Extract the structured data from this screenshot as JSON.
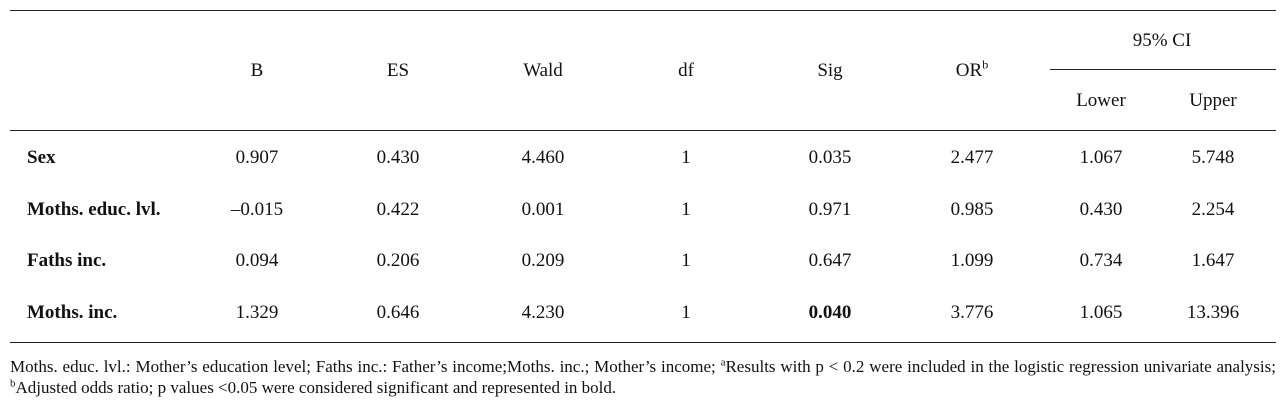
{
  "table": {
    "header": {
      "columns": [
        "B",
        "ES",
        "Wald",
        "df",
        "Sig"
      ],
      "or_label": "OR",
      "or_sup": "b",
      "ci_group": "95% CI",
      "ci_lower": "Lower",
      "ci_upper": "Upper"
    },
    "rows": [
      {
        "label": "Sex",
        "b": "0.907",
        "es": "0.430",
        "wald": "4.460",
        "df": "1",
        "sig": "0.035",
        "or": "2.477",
        "lower": "1.067",
        "upper": "5.748"
      },
      {
        "label": "Moths. educ. lvl.",
        "b": "–0.015",
        "es": "0.422",
        "wald": "0.001",
        "df": "1",
        "sig": "0.971",
        "or": "0.985",
        "lower": "0.430",
        "upper": "2.254"
      },
      {
        "label": "Faths inc.",
        "b": "0.094",
        "es": "0.206",
        "wald": "0.209",
        "df": "1",
        "sig": "0.647",
        "or": "1.099",
        "lower": "0.734",
        "upper": "1.647"
      },
      {
        "label": "Moths. inc.",
        "b": "1.329",
        "es": "0.646",
        "wald": "4.230",
        "df": "1",
        "sig": "0.040",
        "or": "3.776",
        "lower": "1.065",
        "upper": "13.396"
      }
    ]
  },
  "footnote": {
    "part1": "Moths. educ. lvl.: Mother’s education level; Faths inc.: Father’s income;Moths. inc.; Mother’s income; ",
    "sup_a": "a",
    "part2": "Results with p < 0.2 were included in the logistic regression univariate analysis; ",
    "sup_b": "b",
    "part3": "Adjusted odds ratio; p values <0.05 were considered significant and represented in bold."
  }
}
